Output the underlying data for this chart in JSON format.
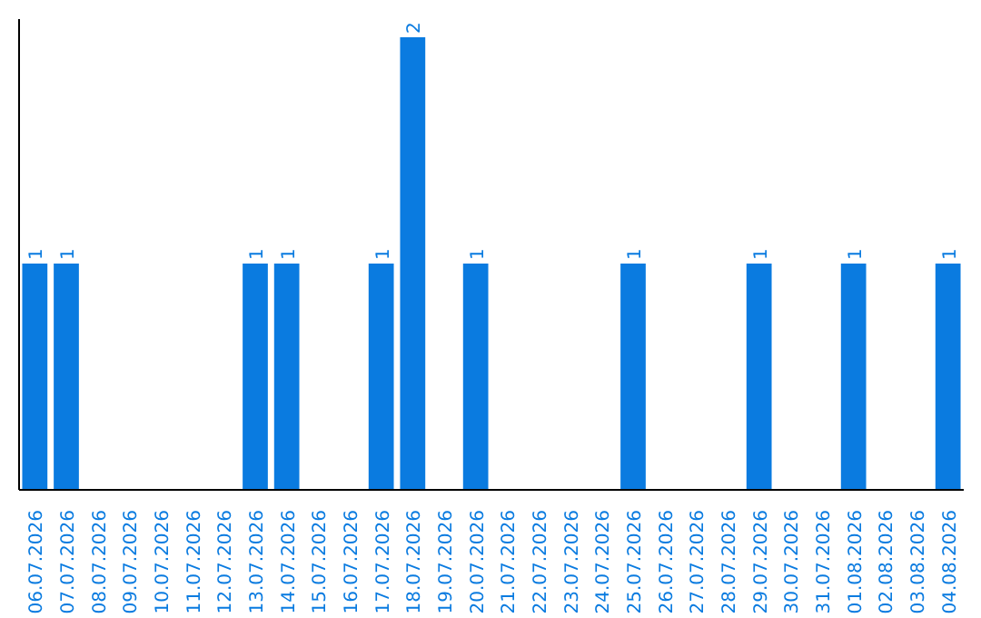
{
  "chart_data": {
    "type": "bar",
    "categories": [
      "06.07.2026",
      "07.07.2026",
      "08.07.2026",
      "09.07.2026",
      "10.07.2026",
      "11.07.2026",
      "12.07.2026",
      "13.07.2026",
      "14.07.2026",
      "15.07.2026",
      "16.07.2026",
      "17.07.2026",
      "18.07.2026",
      "19.07.2026",
      "20.07.2026",
      "21.07.2026",
      "22.07.2026",
      "23.07.2026",
      "24.07.2026",
      "25.07.2026",
      "26.07.2026",
      "27.07.2026",
      "28.07.2026",
      "29.07.2026",
      "30.07.2026",
      "31.07.2026",
      "01.08.2026",
      "02.08.2026",
      "03.08.2026",
      "04.08.2026"
    ],
    "values": [
      1,
      1,
      0,
      0,
      0,
      0,
      0,
      1,
      1,
      0,
      0,
      1,
      2,
      0,
      1,
      0,
      0,
      0,
      0,
      1,
      0,
      0,
      0,
      1,
      0,
      0,
      1,
      0,
      0,
      1
    ],
    "value_labels": [
      "1",
      "1",
      null,
      null,
      null,
      null,
      null,
      "1",
      "1",
      null,
      null,
      "1",
      "2",
      null,
      "1",
      null,
      null,
      null,
      null,
      "1",
      null,
      null,
      null,
      "1",
      null,
      null,
      "1",
      null,
      null,
      "1"
    ],
    "color": "#0a7be0",
    "ylim": [
      0,
      2.08
    ],
    "grid": false
  }
}
